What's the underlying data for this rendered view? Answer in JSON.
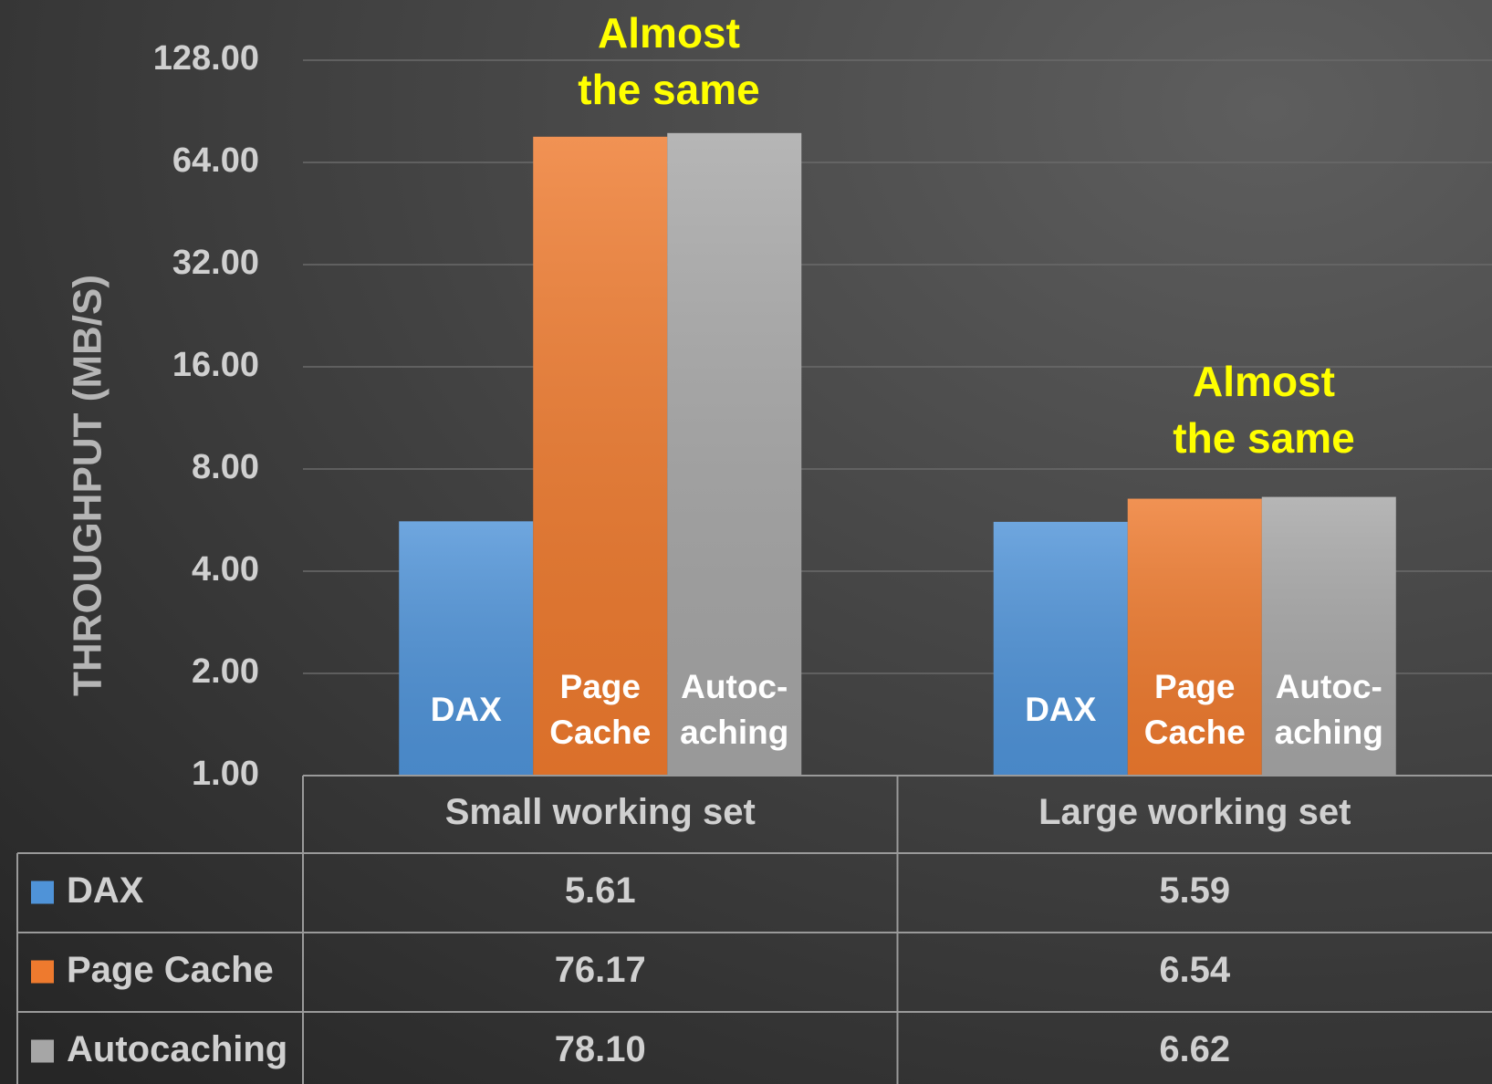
{
  "chart_data": {
    "type": "bar",
    "y_label": "THROUGHPUT (MB/S)",
    "log_scale": true,
    "log_base": 2,
    "grid": true,
    "categories": [
      "Small working set",
      "Large working set"
    ],
    "series": [
      {
        "name": "DAX",
        "color": "#4f93d8",
        "values": [
          5.61,
          5.59
        ],
        "value_labels": [
          "5.61",
          "5.59"
        ],
        "bar_label": [
          "DAX"
        ]
      },
      {
        "name": "Page Cache",
        "color": "#ee7a2e",
        "values": [
          76.17,
          6.54
        ],
        "value_labels": [
          "76.17",
          "6.54"
        ],
        "bar_label": [
          "Page",
          "Cache"
        ]
      },
      {
        "name": "Autocaching",
        "color": "#a6a6a6",
        "values": [
          78.1,
          6.62
        ],
        "value_labels": [
          "78.10",
          "6.62"
        ],
        "bar_label": [
          "Autoc-",
          "aching"
        ]
      }
    ],
    "ylim": [
      1,
      128
    ],
    "yticks": [
      {
        "value": 1,
        "label": "1.00"
      },
      {
        "value": 2,
        "label": "2.00"
      },
      {
        "value": 4,
        "label": "4.00"
      },
      {
        "value": 8,
        "label": "8.00"
      },
      {
        "value": 16,
        "label": "16.00"
      },
      {
        "value": 32,
        "label": "32.00"
      },
      {
        "value": 64,
        "label": "64.00"
      },
      {
        "value": 128,
        "label": "128.00"
      }
    ],
    "annotations": [
      {
        "lines": [
          "Almost",
          "the same"
        ]
      },
      {
        "lines": [
          "Almost",
          "the same"
        ]
      }
    ]
  }
}
